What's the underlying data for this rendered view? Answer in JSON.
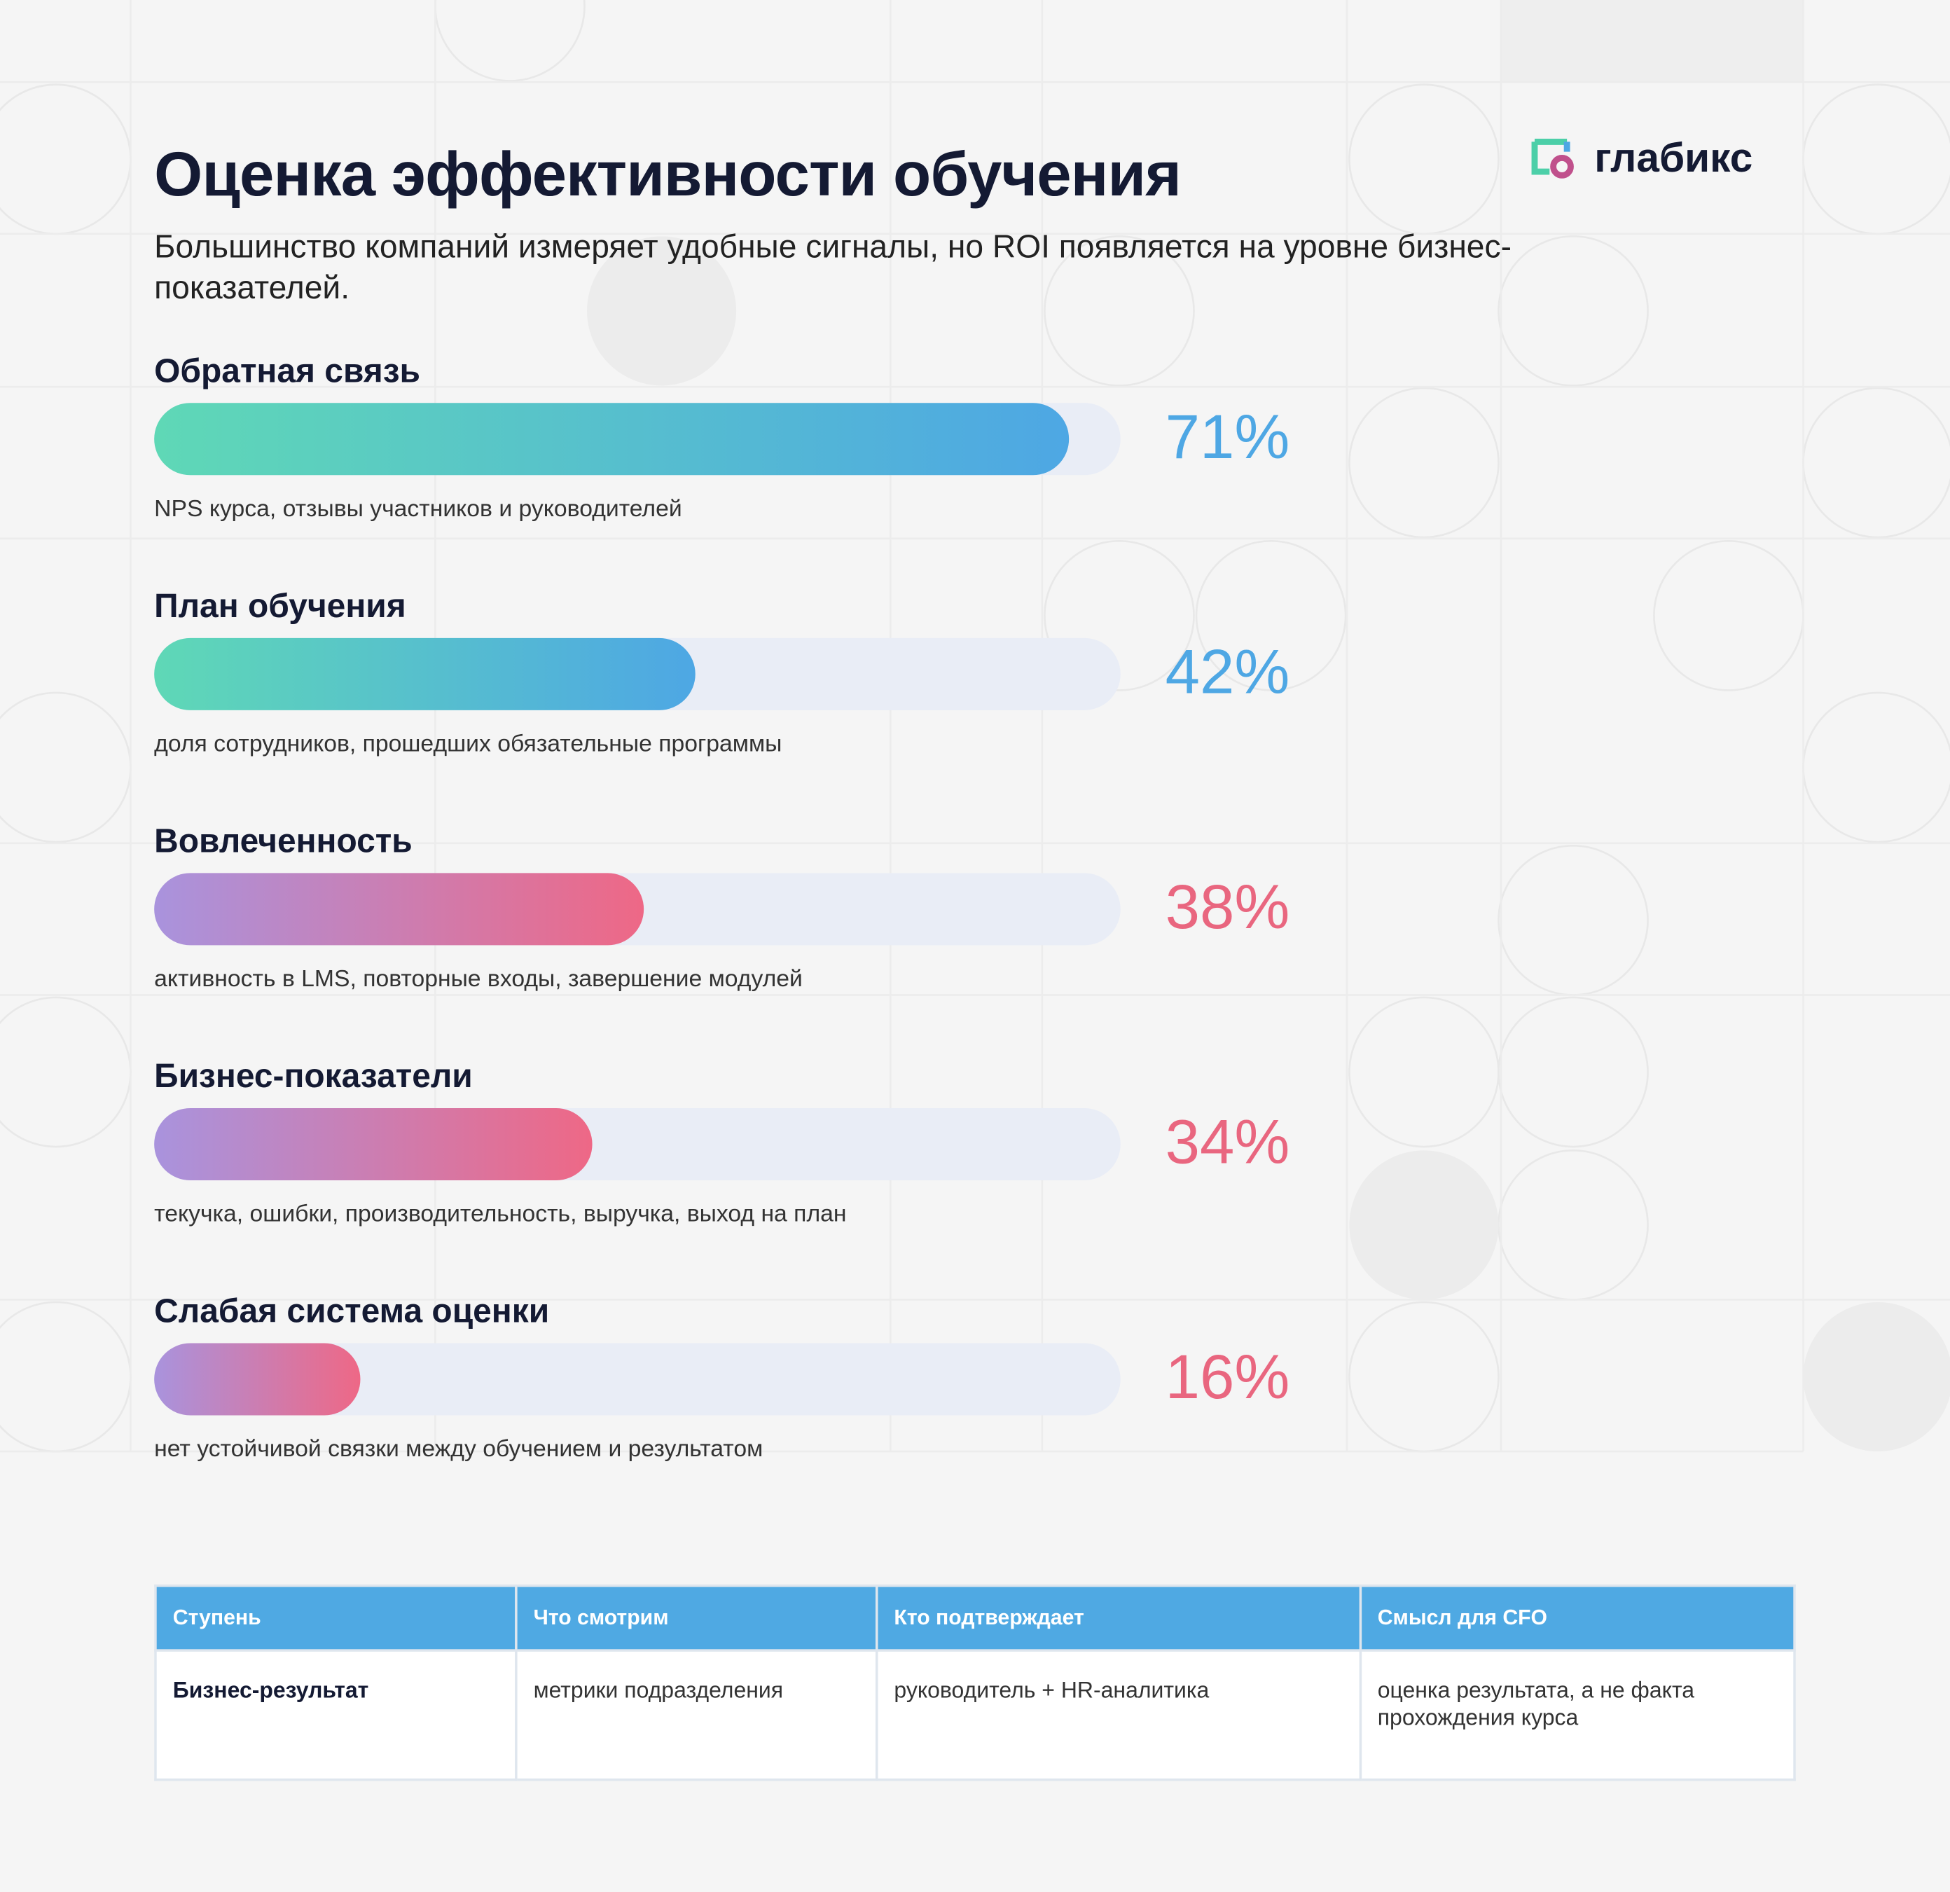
{
  "header": {
    "title": "Оценка эффективности обучения",
    "subtitle": "Большинство компаний измеряет удобные сигналы, но ROI появляется на уровне бизнес-показателей.",
    "logo": "глабикс"
  },
  "chart_data": {
    "type": "bar",
    "orientation": "horizontal",
    "categories": [
      "Обратная связь",
      "План обучения",
      "Вовлеченность",
      "Бизнес-показатели",
      "Слабая система оценки"
    ],
    "descriptions": [
      "NPS курса, отзывы участников и руководителей",
      "доля сотрудников, прошедших обязательные программы",
      "активность в LMS, повторные входы, завершение модулей",
      "текучка, ошибки, производительность, выручка, выход на план",
      "нет устойчивой связки между обучением и результатом"
    ],
    "values": [
      71,
      42,
      38,
      34,
      16
    ],
    "value_labels": [
      "71%",
      "42%",
      "38%",
      "34%",
      "16%"
    ],
    "colors": [
      {
        "from": "#5fd8b6",
        "to": "#4ea7e4",
        "text": "#4ea7e4"
      },
      {
        "from": "#5fd8b6",
        "to": "#4ea7e4",
        "text": "#4ea7e4"
      },
      {
        "from": "#a993dd",
        "to": "#ee6886",
        "text": "#e9667f"
      },
      {
        "from": "#a993dd",
        "to": "#ee6886",
        "text": "#e9667f"
      },
      {
        "from": "#a993dd",
        "to": "#ee6886",
        "text": "#e9667f"
      }
    ],
    "track_color": "#e9edf6",
    "xlim": [
      0,
      75
    ]
  },
  "table": {
    "header": [
      "Ступень",
      "Что смотрим",
      "Кто подтверждает",
      "Смысл для CFO"
    ],
    "rows": [
      [
        "Бизнес-результат",
        "метрики подразделения",
        "руководитель + HR-аналитика",
        "оценка результата, а не факта прохождения курса"
      ]
    ]
  }
}
